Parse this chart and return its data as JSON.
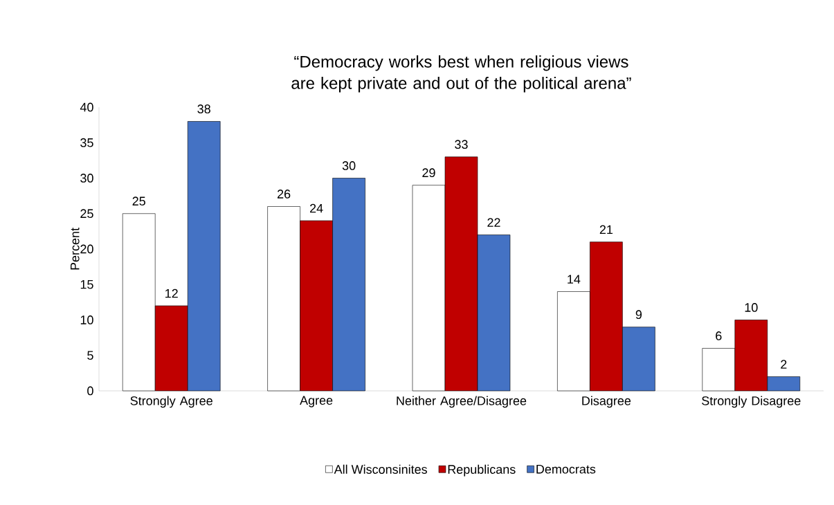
{
  "chart_data": {
    "type": "bar",
    "title": "“Democracy works best when religious views are kept private and out of the political arena”",
    "ylabel": "Percent",
    "categories": [
      "Strongly Agree",
      "Agree",
      "Neither Agree/Disagree",
      "Disagree",
      "Strongly Disagree"
    ],
    "series": [
      {
        "name": "All Wisconsinites",
        "color": "#ffffff",
        "values": [
          25,
          26,
          29,
          14,
          6
        ]
      },
      {
        "name": "Republicans",
        "color": "#c00000",
        "values": [
          12,
          24,
          33,
          21,
          10
        ]
      },
      {
        "name": "Democrats",
        "color": "#4472c4",
        "values": [
          38,
          30,
          22,
          9,
          2
        ]
      }
    ],
    "ylim": [
      0,
      40
    ],
    "yticks": [
      0,
      5,
      10,
      15,
      20,
      25,
      30,
      35,
      40
    ],
    "data_labels": true,
    "grid": false,
    "legend": "bottom"
  }
}
